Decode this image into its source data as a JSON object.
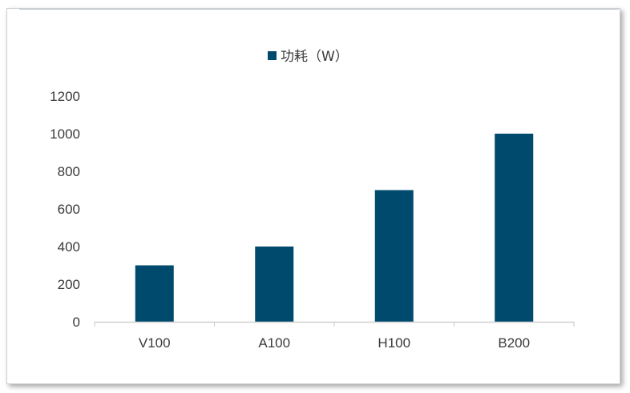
{
  "chart_data": {
    "type": "bar",
    "categories": [
      "V100",
      "A100",
      "H100",
      "B200"
    ],
    "series": [
      {
        "name": "功耗（W）",
        "values": [
          300,
          400,
          700,
          1000
        ]
      }
    ],
    "ylim": [
      0,
      1200
    ],
    "yticks": [
      0,
      200,
      400,
      600,
      800,
      1000,
      1200
    ],
    "grid": false,
    "legend_position": "top-center",
    "colors": {
      "bar": "#004a6e",
      "axis": "#d0d0d0",
      "text": "#3a3a3a"
    }
  }
}
